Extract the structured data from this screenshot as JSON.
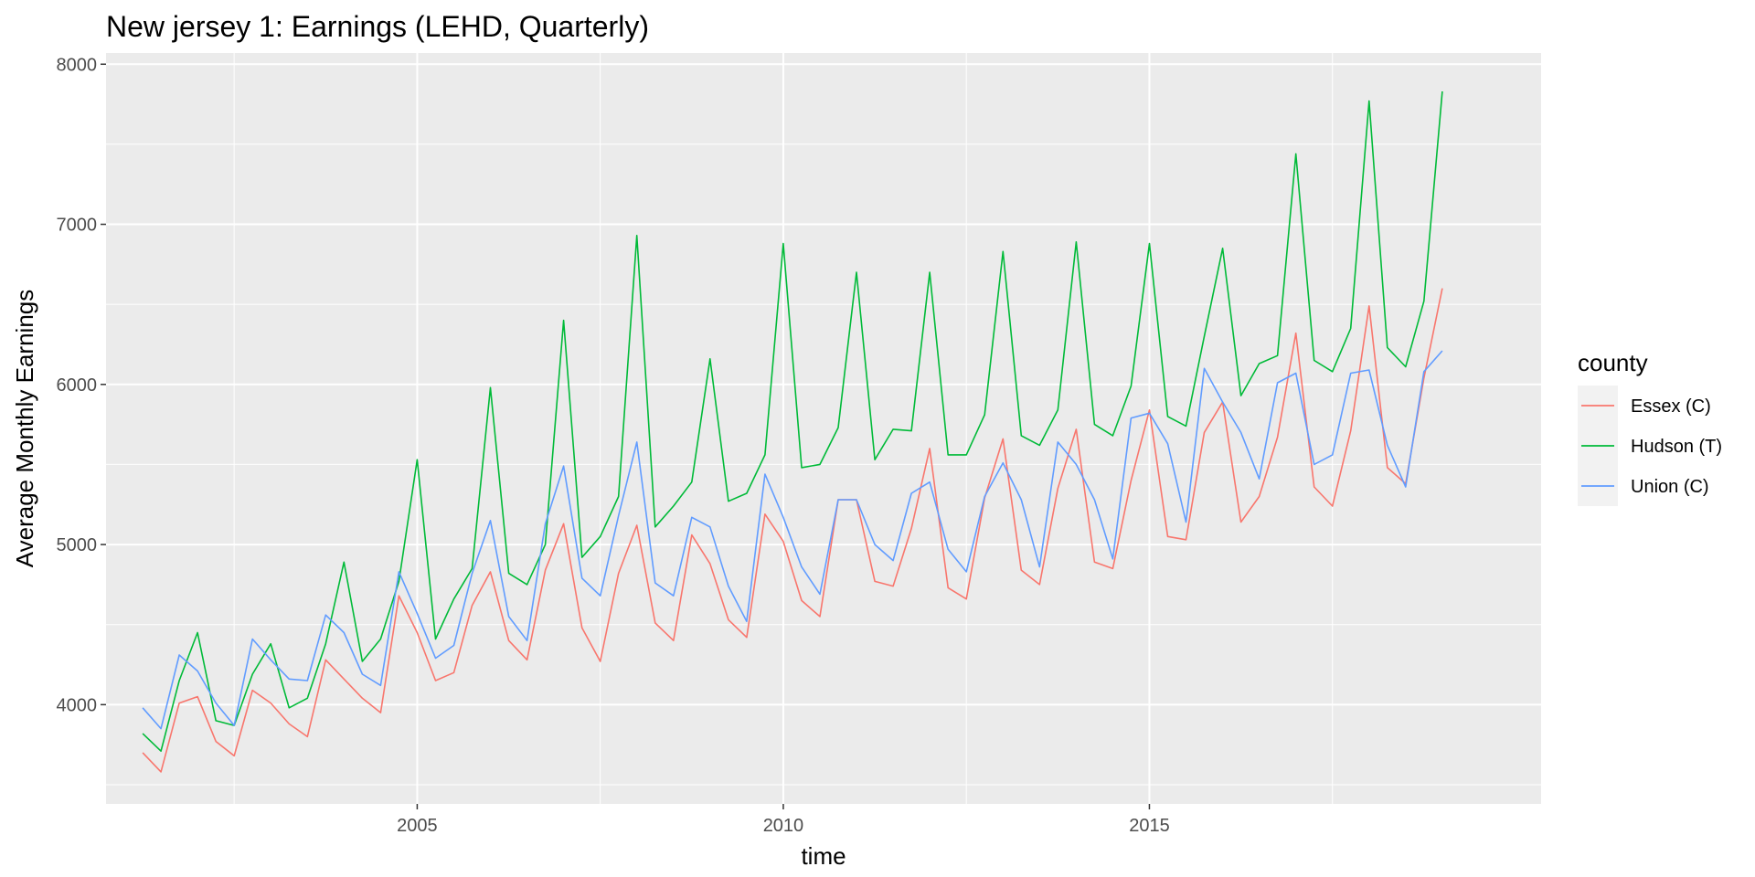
{
  "chart_data": {
    "type": "line",
    "title": "New jersey 1: Earnings (LEHD, Quarterly)",
    "xlabel": "time",
    "ylabel": "Average Monthly Earnings",
    "xlim": [
      2000.75,
      2020.35
    ],
    "ylim": [
      3380,
      8070
    ],
    "x_ticks": [
      2005,
      2010,
      2015
    ],
    "y_ticks": [
      4000,
      5000,
      6000,
      7000,
      8000
    ],
    "legend_title": "county",
    "legend_position": "right",
    "grid": true,
    "x_start": 2001.25,
    "x_step": 0.25,
    "series": [
      {
        "name": "Essex (C)",
        "color": "#F8766D",
        "values": [
          3700,
          3580,
          4010,
          4050,
          3770,
          3680,
          4090,
          4010,
          3880,
          3800,
          4280,
          4160,
          4040,
          3950,
          4680,
          4450,
          4150,
          4200,
          4620,
          4830,
          4400,
          4280,
          4840,
          5130,
          4480,
          4270,
          4820,
          5120,
          4510,
          4400,
          5060,
          4880,
          4530,
          4420,
          5190,
          5020,
          4650,
          4550,
          5280,
          5280,
          4770,
          4740,
          5100,
          5600,
          4730,
          4660,
          5290,
          5660,
          4840,
          4750,
          5350,
          5720,
          4890,
          4850,
          5400,
          5840,
          5050,
          5030,
          5700,
          5890,
          5140,
          5300,
          5670,
          6320,
          5360,
          5240,
          5710,
          6490,
          5480,
          5380,
          6040,
          6600
        ]
      },
      {
        "name": "Hudson (T)",
        "color": "#00BA38",
        "values": [
          3820,
          3710,
          4150,
          4450,
          3900,
          3870,
          4190,
          4380,
          3980,
          4040,
          4380,
          4890,
          4270,
          4410,
          4770,
          5530,
          4410,
          4660,
          4850,
          5980,
          4820,
          4750,
          5000,
          6400,
          4920,
          5050,
          5300,
          6930,
          5110,
          5240,
          5390,
          6160,
          5270,
          5320,
          5560,
          6880,
          5480,
          5500,
          5730,
          6700,
          5530,
          5720,
          5710,
          6700,
          5560,
          5560,
          5810,
          6830,
          5680,
          5620,
          5840,
          6890,
          5750,
          5680,
          5990,
          6880,
          5800,
          5740,
          6300,
          6850,
          5930,
          6130,
          6180,
          7440,
          6150,
          6080,
          6350,
          7770,
          6230,
          6110,
          6520,
          7830
        ]
      },
      {
        "name": "Union (C)",
        "color": "#619CFF",
        "values": [
          3980,
          3850,
          4310,
          4210,
          4010,
          3870,
          4410,
          4280,
          4160,
          4150,
          4560,
          4450,
          4190,
          4120,
          4830,
          4570,
          4290,
          4370,
          4820,
          5150,
          4550,
          4400,
          5130,
          5490,
          4790,
          4680,
          5180,
          5640,
          4760,
          4680,
          5170,
          5110,
          4740,
          4520,
          5440,
          5170,
          4860,
          4690,
          5280,
          5280,
          5000,
          4900,
          5320,
          5390,
          4970,
          4830,
          5300,
          5510,
          5280,
          4860,
          5640,
          5500,
          5280,
          4910,
          5790,
          5820,
          5630,
          5140,
          6100,
          5890,
          5700,
          5410,
          6010,
          6070,
          5500,
          5560,
          6070,
          6090,
          5620,
          5360,
          6080,
          6210
        ]
      }
    ]
  }
}
